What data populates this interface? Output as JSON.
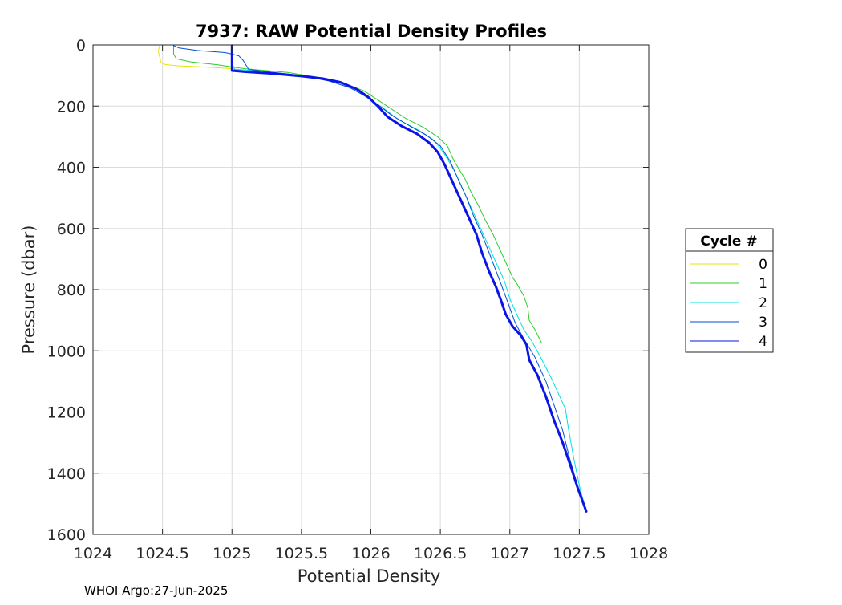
{
  "chart_data": {
    "type": "line",
    "title": "7937: RAW Potential Density Profiles",
    "xlabel": "Potential Density",
    "ylabel": "Pressure (dbar)",
    "xlim": [
      1024,
      1028
    ],
    "ylim": [
      0,
      1600
    ],
    "y_reversed": true,
    "grid": true,
    "x_ticks": [
      "1024",
      "1024.5",
      "1025",
      "1025.5",
      "1026",
      "1026.5",
      "1027",
      "1027.5",
      "1028"
    ],
    "y_ticks": [
      "0",
      "200",
      "400",
      "600",
      "800",
      "1000",
      "1200",
      "1400",
      "1600"
    ],
    "legend_title": "Cycle #",
    "legend_position": "right",
    "footer": "WHOI Argo:27-Jun-2025",
    "series": [
      {
        "name": "0",
        "color": "#e6e600",
        "width": 1,
        "points": [
          [
            1024.48,
            2
          ],
          [
            1024.47,
            20
          ],
          [
            1024.48,
            40
          ],
          [
            1024.49,
            58
          ],
          [
            1024.52,
            64
          ],
          [
            1024.6,
            68
          ],
          [
            1024.8,
            72
          ],
          [
            1024.95,
            76
          ],
          [
            1025.05,
            80
          ],
          [
            1025.1,
            82
          ]
        ]
      },
      {
        "name": "1",
        "color": "#2ecc2e",
        "width": 1,
        "points": [
          [
            1024.58,
            2
          ],
          [
            1024.58,
            30
          ],
          [
            1024.6,
            45
          ],
          [
            1024.7,
            55
          ],
          [
            1024.9,
            65
          ],
          [
            1025.0,
            72
          ],
          [
            1025.1,
            78
          ],
          [
            1025.2,
            82
          ],
          [
            1025.4,
            90
          ],
          [
            1025.6,
            104
          ],
          [
            1025.8,
            125
          ],
          [
            1025.95,
            150
          ],
          [
            1026.05,
            180
          ],
          [
            1026.15,
            210
          ],
          [
            1026.25,
            240
          ],
          [
            1026.38,
            270
          ],
          [
            1026.48,
            300
          ],
          [
            1026.55,
            330
          ],
          [
            1026.6,
            380
          ],
          [
            1026.68,
            440
          ],
          [
            1026.72,
            480
          ],
          [
            1026.78,
            530
          ],
          [
            1026.82,
            570
          ],
          [
            1026.88,
            620
          ],
          [
            1026.93,
            670
          ],
          [
            1026.98,
            720
          ],
          [
            1027.02,
            760
          ],
          [
            1027.05,
            780
          ],
          [
            1027.1,
            820
          ],
          [
            1027.13,
            860
          ],
          [
            1027.14,
            900
          ],
          [
            1027.18,
            930
          ],
          [
            1027.23,
            975
          ]
        ]
      },
      {
        "name": "2",
        "color": "#00e0e0",
        "width": 1,
        "points": [
          [
            1025.0,
            2
          ],
          [
            1025.0,
            60
          ],
          [
            1025.02,
            80
          ],
          [
            1025.2,
            85
          ],
          [
            1025.5,
            100
          ],
          [
            1025.7,
            115
          ],
          [
            1025.88,
            140
          ],
          [
            1026.0,
            180
          ],
          [
            1026.1,
            210
          ],
          [
            1026.2,
            245
          ],
          [
            1026.35,
            280
          ],
          [
            1026.45,
            310
          ],
          [
            1026.52,
            350
          ],
          [
            1026.6,
            410
          ],
          [
            1026.66,
            470
          ],
          [
            1026.72,
            530
          ],
          [
            1026.78,
            590
          ],
          [
            1026.84,
            650
          ],
          [
            1026.9,
            710
          ],
          [
            1026.96,
            770
          ],
          [
            1027.0,
            830
          ],
          [
            1027.05,
            880
          ],
          [
            1027.1,
            930
          ],
          [
            1027.16,
            970
          ],
          [
            1027.22,
            1020
          ],
          [
            1027.3,
            1090
          ],
          [
            1027.36,
            1150
          ],
          [
            1027.4,
            1190
          ],
          [
            1027.42,
            1250
          ],
          [
            1027.46,
            1350
          ],
          [
            1027.5,
            1440
          ],
          [
            1027.54,
            1510
          ]
        ]
      },
      {
        "name": "3",
        "color": "#0050d0",
        "width": 1,
        "points": [
          [
            1024.58,
            2
          ],
          [
            1024.62,
            10
          ],
          [
            1024.75,
            18
          ],
          [
            1024.95,
            25
          ],
          [
            1025.0,
            30
          ],
          [
            1025.05,
            36
          ],
          [
            1025.08,
            50
          ],
          [
            1025.1,
            65
          ],
          [
            1025.12,
            80
          ],
          [
            1025.3,
            90
          ],
          [
            1025.5,
            100
          ],
          [
            1025.7,
            118
          ],
          [
            1025.85,
            140
          ],
          [
            1025.95,
            165
          ],
          [
            1026.05,
            195
          ],
          [
            1026.15,
            230
          ],
          [
            1026.28,
            265
          ],
          [
            1026.4,
            295
          ],
          [
            1026.5,
            330
          ],
          [
            1026.57,
            380
          ],
          [
            1026.63,
            440
          ],
          [
            1026.69,
            500
          ],
          [
            1026.74,
            560
          ],
          [
            1026.8,
            620
          ],
          [
            1026.86,
            690
          ],
          [
            1026.91,
            750
          ],
          [
            1026.96,
            810
          ],
          [
            1027.0,
            860
          ],
          [
            1027.04,
            910
          ],
          [
            1027.1,
            960
          ],
          [
            1027.18,
            1020
          ],
          [
            1027.26,
            1100
          ],
          [
            1027.32,
            1180
          ],
          [
            1027.38,
            1260
          ],
          [
            1027.43,
            1350
          ],
          [
            1027.48,
            1430
          ],
          [
            1027.53,
            1500
          ],
          [
            1027.55,
            1525
          ]
        ]
      },
      {
        "name": "4",
        "color": "#0a14e6",
        "width": 3,
        "points": [
          [
            1025.0,
            2
          ],
          [
            1025.0,
            40
          ],
          [
            1025.0,
            84
          ],
          [
            1025.1,
            88
          ],
          [
            1025.3,
            94
          ],
          [
            1025.5,
            102
          ],
          [
            1025.65,
            110
          ],
          [
            1025.78,
            122
          ],
          [
            1025.9,
            145
          ],
          [
            1025.98,
            170
          ],
          [
            1026.05,
            200
          ],
          [
            1026.12,
            235
          ],
          [
            1026.22,
            265
          ],
          [
            1026.33,
            290
          ],
          [
            1026.42,
            320
          ],
          [
            1026.48,
            350
          ],
          [
            1026.53,
            390
          ],
          [
            1026.58,
            440
          ],
          [
            1026.63,
            490
          ],
          [
            1026.68,
            540
          ],
          [
            1026.72,
            580
          ],
          [
            1026.76,
            620
          ],
          [
            1026.8,
            680
          ],
          [
            1026.85,
            740
          ],
          [
            1026.9,
            790
          ],
          [
            1026.94,
            840
          ],
          [
            1026.97,
            880
          ],
          [
            1027.02,
            920
          ],
          [
            1027.08,
            950
          ],
          [
            1027.12,
            980
          ],
          [
            1027.14,
            1030
          ],
          [
            1027.2,
            1080
          ],
          [
            1027.26,
            1150
          ],
          [
            1027.32,
            1230
          ],
          [
            1027.38,
            1300
          ],
          [
            1027.44,
            1380
          ],
          [
            1027.49,
            1450
          ],
          [
            1027.53,
            1500
          ],
          [
            1027.55,
            1525
          ]
        ]
      }
    ]
  }
}
